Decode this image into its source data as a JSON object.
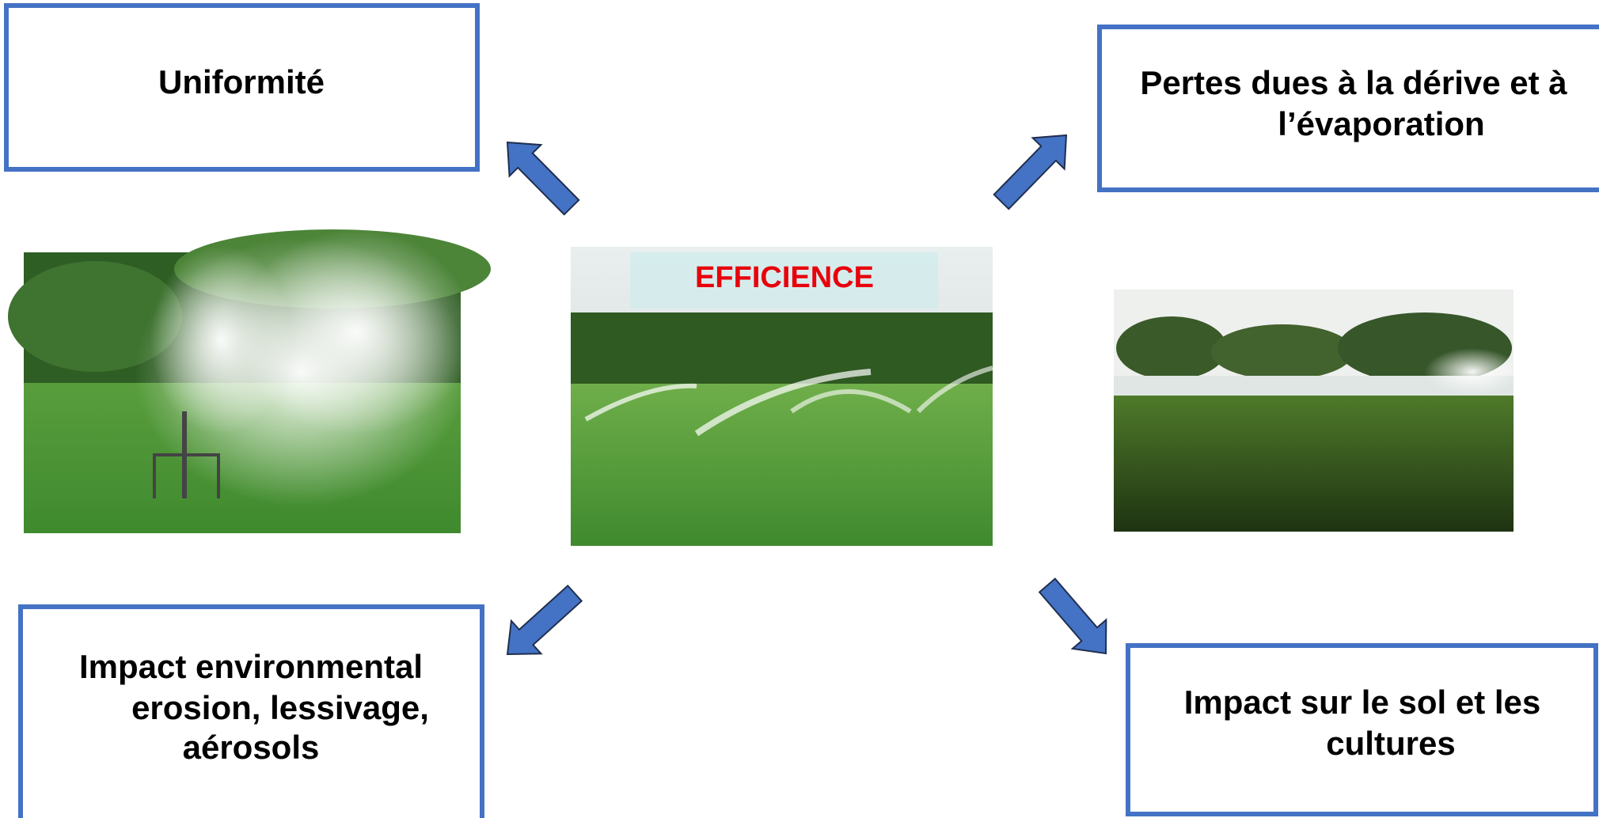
{
  "boxes": [
    {
      "lines": [
        "Uniformité"
      ]
    },
    {
      "lines": [
        "Pertes dues à la dérive et à",
        "l’évaporation"
      ]
    },
    {
      "lines": [
        "Impact environmental",
        "erosion, lessivage,",
        "aérosols"
      ]
    },
    {
      "lines": [
        "Impact sur le sol et les",
        "cultures"
      ]
    }
  ],
  "center": {
    "label": "EFFICIENCE"
  }
}
